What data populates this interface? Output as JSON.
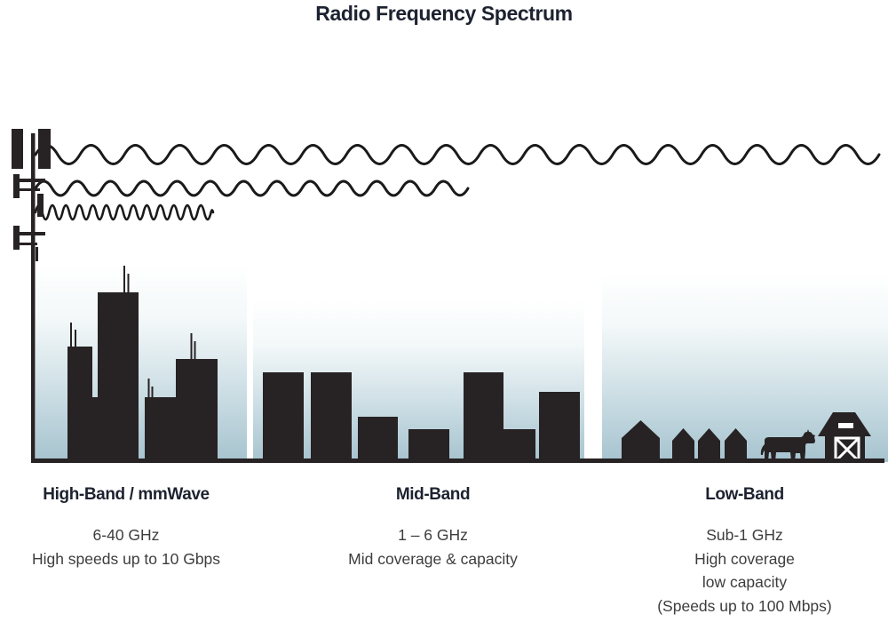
{
  "title": "Radio Frequency Spectrum",
  "bands": [
    {
      "name": "High-Band / mmWave",
      "details": [
        "6-40 GHz",
        "High speeds up to 10 Gbps"
      ],
      "scene": "city-skyscrapers-with-antennas",
      "wave": "short-wavelength-short-reach"
    },
    {
      "name": "Mid-Band",
      "details": [
        "1 – 6 GHz",
        "Mid coverage & capacity"
      ],
      "scene": "mid-rise-town-buildings",
      "wave": "medium-wavelength-medium-reach"
    },
    {
      "name": "Low-Band",
      "details": [
        "Sub-1 GHz",
        "High coverage",
        "low capacity",
        "(Speeds up to 100 Mbps)"
      ],
      "scene": "rural-houses-cow-barn",
      "wave": "long-wavelength-full-reach"
    }
  ],
  "icons": {
    "transmitter": "cell-tower-icon",
    "waves": [
      "long-wave-icon",
      "medium-wave-icon",
      "short-wave-icon"
    ],
    "low_band": [
      "house-icon",
      "cow-icon",
      "barn-icon"
    ]
  },
  "colors": {
    "silhouette": "#272223",
    "heading_text": "#1d2230",
    "body_text": "#3d3d3d",
    "sky_bottom": "#a6c3cf",
    "wave_stroke": "#1a1a1a"
  }
}
